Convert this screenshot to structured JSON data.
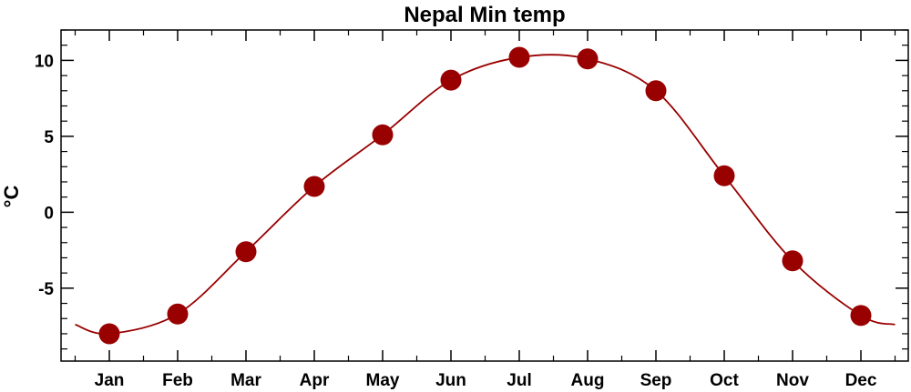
{
  "chart_data": {
    "type": "line",
    "title": "Nepal Min temp",
    "xlabel": "",
    "ylabel": "°C",
    "categories": [
      "Jan",
      "Feb",
      "Mar",
      "Apr",
      "May",
      "Jun",
      "Jul",
      "Aug",
      "Sep",
      "Oct",
      "Nov",
      "Dec"
    ],
    "series": [
      {
        "values": [
          -8.0,
          -6.7,
          -2.6,
          1.7,
          5.1,
          8.7,
          10.2,
          10.1,
          8.0,
          2.4,
          -3.2,
          -6.8
        ]
      }
    ],
    "curve_edges": {
      "before_jan": -7.4,
      "after_dec": -7.4
    },
    "ylim": [
      -9.8,
      12.0
    ],
    "yticks": [
      -5,
      0,
      5,
      10
    ],
    "ytick_labels": [
      "-5",
      "0",
      "5",
      "10"
    ],
    "grid": false,
    "legend": "none",
    "colors": {
      "series": "#990000",
      "axes": "#000000",
      "background": "#ffffff"
    }
  }
}
